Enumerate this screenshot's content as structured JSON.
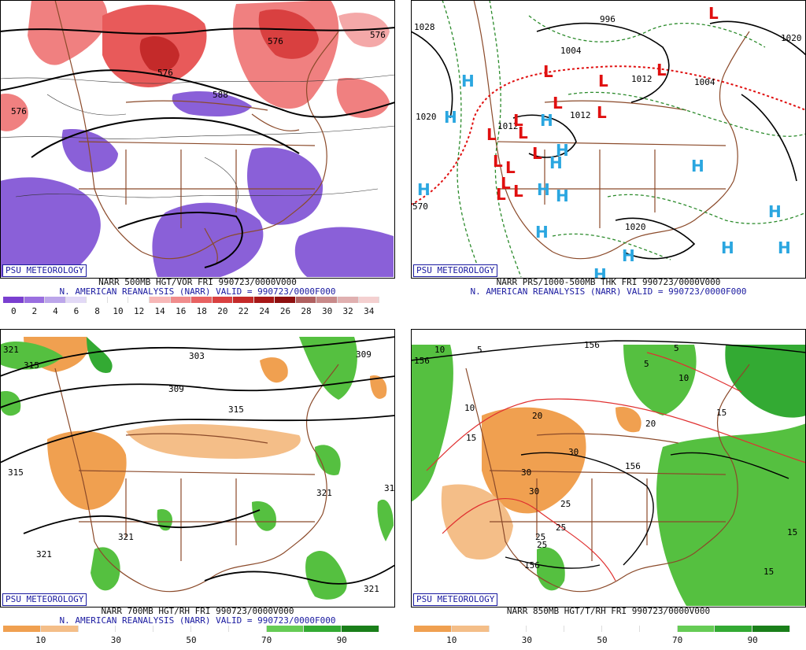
{
  "panels": {
    "p1": {
      "badge": "PSU METEOROLOGY",
      "title_line1": "NARR 500MB HGT/VOR FRI 990723/0000V000",
      "title_line2": "N. AMERICAN REANALYSIS (NARR) VALID = 990723/0000F000",
      "colorbar_labels": [
        "0",
        "2",
        "4",
        "6",
        "8",
        "10",
        "12",
        "14",
        "16",
        "18",
        "20",
        "22",
        "24",
        "26",
        "28",
        "30",
        "32",
        "34"
      ],
      "colorbar_colors": [
        "#7a3fd0",
        "#9a6fe0",
        "#bca6ea",
        "#e2d9f6",
        "#ffffff",
        "#ffffff",
        "#ffffff",
        "#f7b7b7",
        "#f08c8c",
        "#e86262",
        "#d94040",
        "#c42a2a",
        "#a81818",
        "#8e1010",
        "#b06060",
        "#c88a8a",
        "#e0b0b0",
        "#f4d0d0"
      ],
      "contour_labels": [
        "576",
        "576",
        "576",
        "576",
        "588"
      ]
    },
    "p2": {
      "badge": "PSU METEOROLOGY",
      "title_line1": "NARR PRS/1000-500MB THK FRI 990723/0000V000",
      "title_line2": "N. AMERICAN REANALYSIS (NARR) VALID = 990723/0000F000",
      "contour_labels": [
        "1028",
        "996",
        "1004",
        "1020",
        "1012",
        "1012",
        "1020",
        "1020",
        "1012",
        "1004",
        "570"
      ],
      "high_symbol": "H",
      "low_symbol": "L"
    },
    "p3": {
      "badge": "PSU METEOROLOGY",
      "title_line1": "NARR 700MB HGT/RH FRI 990723/0000V000",
      "title_line2": "N. AMERICAN REANALYSIS (NARR) VALID = 990723/0000F000",
      "colorbar_labels": [
        "10",
        "30",
        "50",
        "70",
        "90"
      ],
      "colorbar_colors": [
        "#f0a050",
        "#f4be88",
        "#ffffff",
        "#ffffff",
        "#ffffff",
        "#ffffff",
        "#ffffff",
        "#66cc55",
        "#33aa33",
        "#1a7f1a"
      ],
      "contour_labels": [
        "321",
        "315",
        "303",
        "309",
        "315",
        "309",
        "315",
        "321",
        "321",
        "321",
        "321",
        "31"
      ]
    },
    "p4": {
      "badge": "PSU METEOROLOGY",
      "title_line1": "NARR 850MB HGT/T/RH FRI 990723/0000V000",
      "colorbar_labels": [
        "10",
        "30",
        "50",
        "70",
        "90"
      ],
      "colorbar_colors": [
        "#f0a050",
        "#f4be88",
        "#ffffff",
        "#ffffff",
        "#ffffff",
        "#ffffff",
        "#ffffff",
        "#66cc55",
        "#33aa33",
        "#1a7f1a"
      ],
      "contour_labels": [
        "156",
        "156",
        "156",
        "156",
        "10",
        "10",
        "10",
        "20",
        "20",
        "15",
        "15",
        "15",
        "15",
        "30",
        "30",
        "30",
        "25",
        "25",
        "25",
        "25",
        "5",
        "5",
        "5"
      ]
    }
  },
  "colors": {
    "coast": "#8b4a2a",
    "height_contour": "#000000",
    "thickness_dashed": "#2a8a2a",
    "high": "#2aa6e0",
    "low": "#e01010",
    "badge": "#1a1aa0"
  }
}
